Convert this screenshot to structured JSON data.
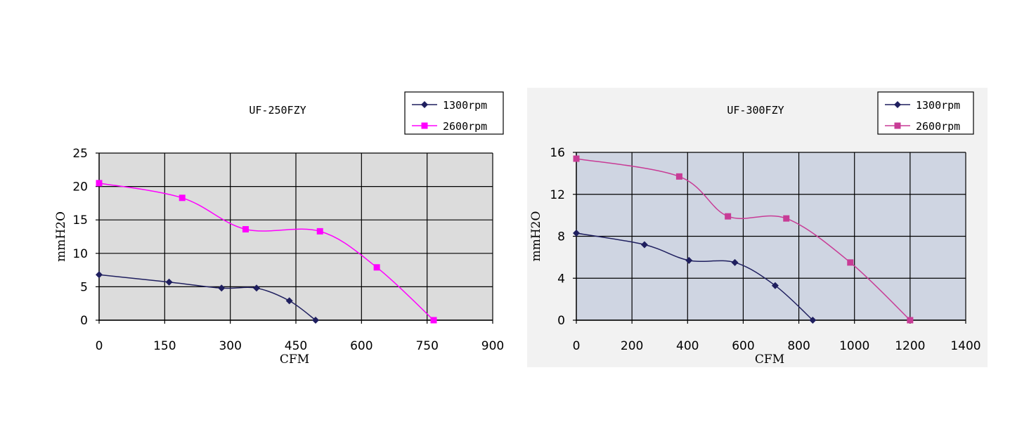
{
  "chart_data": [
    {
      "type": "line",
      "title": "UF-250FZY",
      "xlabel": "CFM",
      "ylabel": "mmH2O",
      "xlim": [
        0,
        900
      ],
      "ylim": [
        0,
        25
      ],
      "x_ticks": [
        0,
        150,
        300,
        450,
        600,
        750,
        900
      ],
      "y_ticks": [
        0,
        5,
        10,
        15,
        20,
        25
      ],
      "grid": true,
      "legend_position": "top-right",
      "plot_background": "#dcdcdc",
      "series": [
        {
          "name": "1300rpm",
          "color": "#1f1f5f",
          "marker": "diamond",
          "x": [
            0,
            160,
            280,
            360,
            435,
            495
          ],
          "y": [
            6.8,
            5.7,
            4.8,
            4.8,
            2.9,
            0
          ]
        },
        {
          "name": "2600rpm",
          "color": "#ff00ff",
          "marker": "square",
          "x": [
            0,
            190,
            335,
            505,
            635,
            765
          ],
          "y": [
            20.5,
            18.3,
            13.6,
            13.3,
            7.9,
            0
          ]
        }
      ]
    },
    {
      "type": "line",
      "title": "UF-300FZY",
      "xlabel": "CFM",
      "ylabel": "mmH2O",
      "xlim": [
        0,
        1400
      ],
      "ylim": [
        0,
        16
      ],
      "x_ticks": [
        0,
        200,
        400,
        600,
        800,
        1000,
        1200,
        1400
      ],
      "y_ticks": [
        0,
        4,
        8,
        12,
        16
      ],
      "grid": true,
      "legend_position": "top-right",
      "plot_background": "#cfd5e2",
      "series": [
        {
          "name": "1300rpm",
          "color": "#1f1f5f",
          "marker": "diamond",
          "x": [
            0,
            245,
            405,
            570,
            715,
            850
          ],
          "y": [
            8.3,
            7.2,
            5.7,
            5.5,
            3.3,
            0
          ]
        },
        {
          "name": "2600rpm",
          "color": "#c83c96",
          "marker": "square",
          "x": [
            0,
            370,
            545,
            755,
            985,
            1200
          ],
          "y": [
            15.4,
            13.7,
            9.9,
            9.7,
            5.5,
            0
          ]
        }
      ]
    }
  ]
}
